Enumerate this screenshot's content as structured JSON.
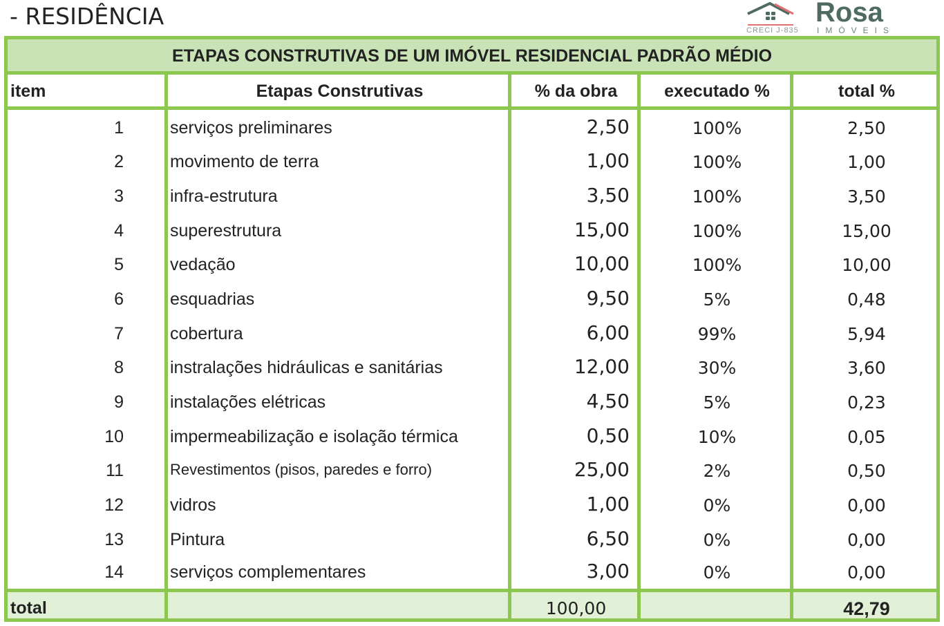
{
  "heading": "- RESIDÊNCIA",
  "table": {
    "title": "ETAPAS CONSTRUTIVAS DE UM IMÓVEL RESIDENCIAL PADRÃO MÉDIO",
    "columns": [
      "item",
      "Etapas Construtivas",
      "% da obra",
      "executado %",
      "total %"
    ],
    "rows": [
      {
        "item": "1",
        "etapa": "serviços preliminares",
        "obra": "2,50",
        "executado": "100%",
        "total": "2,50"
      },
      {
        "item": "2",
        "etapa": "movimento de terra",
        "obra": "1,00",
        "executado": "100%",
        "total": "1,00"
      },
      {
        "item": "3",
        "etapa": "infra-estrutura",
        "obra": "3,50",
        "executado": "100%",
        "total": "3,50"
      },
      {
        "item": "4",
        "etapa": "superestrutura",
        "obra": "15,00",
        "executado": "100%",
        "total": "15,00"
      },
      {
        "item": "5",
        "etapa": "vedação",
        "obra": "10,00",
        "executado": "100%",
        "total": "10,00"
      },
      {
        "item": "6",
        "etapa": "esquadrias",
        "obra": "9,50",
        "executado": "5%",
        "total": "0,48"
      },
      {
        "item": "7",
        "etapa": "cobertura",
        "obra": "6,00",
        "executado": "99%",
        "total": "5,94"
      },
      {
        "item": "8",
        "etapa": "instralações hidráulicas e sanitárias",
        "obra": "12,00",
        "executado": "30%",
        "total": "3,60"
      },
      {
        "item": "9",
        "etapa": "instalações elétricas",
        "obra": "4,50",
        "executado": "5%",
        "total": "0,23"
      },
      {
        "item": "10",
        "etapa": "impermeabilização e isolação térmica",
        "obra": "0,50",
        "executado": "10%",
        "total": "0,05"
      },
      {
        "item": "11",
        "etapa": "Revestimentos (pisos, paredes e forro)",
        "obra": "25,00",
        "executado": "2%",
        "total": "0,50"
      },
      {
        "item": "12",
        "etapa": "vidros",
        "obra": "1,00",
        "executado": "0%",
        "total": "0,00"
      },
      {
        "item": "13",
        "etapa": "Pintura",
        "obra": "6,50",
        "executado": "0%",
        "total": "0,00"
      },
      {
        "item": "14",
        "etapa": "serviços complementares",
        "obra": "3,00",
        "executado": "0%",
        "total": "0,00"
      }
    ],
    "total": {
      "label": "total",
      "obra": "100,00",
      "total": "42,79"
    }
  },
  "watermark": {
    "brand": "Rosa",
    "sub": "IMÓVEIS",
    "creci": "CRECI J-835"
  },
  "colors": {
    "border": "#8cc84f",
    "title_bg": "#c9e3b6",
    "total_bg": "#e3f0d8",
    "logo": "#4f6b61",
    "logo_accent": "#e07070"
  }
}
